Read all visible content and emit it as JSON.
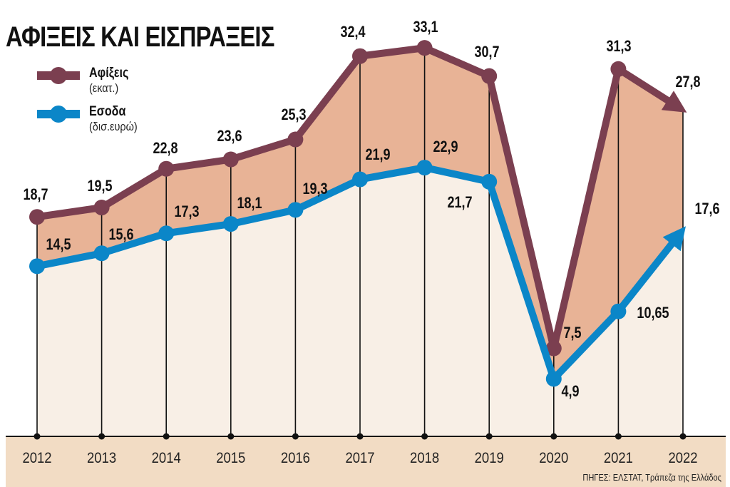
{
  "chart_data": {
    "type": "line",
    "title": "ΑΦΙΞΕΙΣ ΚΑΙ ΕΙΣΠΡΑΞΕΙΣ",
    "categories": [
      "2012",
      "2013",
      "2014",
      "2015",
      "2016",
      "2017",
      "2018",
      "2019",
      "2020",
      "2021",
      "2022"
    ],
    "series": [
      {
        "name": "Αφίξεις",
        "unit": "(εκατ.)",
        "color": "#7b3f50",
        "values": [
          18.7,
          19.5,
          22.8,
          23.6,
          25.3,
          32.4,
          33.1,
          30.7,
          7.5,
          31.3,
          27.8
        ],
        "labels": [
          "18,7",
          "19,5",
          "22,8",
          "23,6",
          "25,3",
          "32,4",
          "33,1",
          "30,7",
          "7,5",
          "31,3",
          "27,8"
        ]
      },
      {
        "name": "Εσοδα",
        "unit": "(δισ.ευρώ)",
        "color": "#0b86c8",
        "values": [
          14.5,
          15.6,
          17.3,
          18.1,
          19.3,
          21.9,
          22.9,
          21.7,
          4.9,
          10.65,
          17.6
        ],
        "labels": [
          "14,5",
          "15,6",
          "17,3",
          "18,1",
          "19,3",
          "21,9",
          "22,9",
          "21,7",
          "4,9",
          "10,65",
          "17,6"
        ]
      }
    ],
    "ylim": [
      0,
      37
    ],
    "grid": false,
    "legend": "top-left",
    "fill_between_color": "#e8b396",
    "fill_below_color": "#f8efe6",
    "axis_band_color": "#f2dcc4"
  },
  "source": "ΠΗΓΕΣ: ΕΛΣΤΑΤ, Τράπεζα της Ελλάδος"
}
